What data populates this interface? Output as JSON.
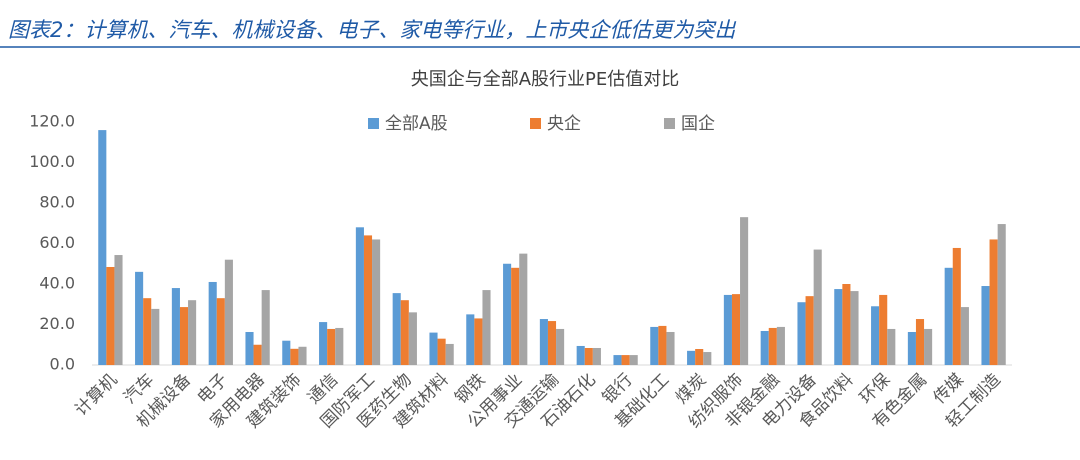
{
  "chart_data": {
    "type": "bar",
    "caption": "图表2：计算机、汽车、机械设备、电子、家电等行业，上市央企低估更为突出",
    "title": "央国企与全部A股行业PE估值对比",
    "categories": [
      "计算机",
      "汽车",
      "机械设备",
      "电子",
      "家用电器",
      "建筑装饰",
      "通信",
      "国防军工",
      "医药生物",
      "建筑材料",
      "钢铁",
      "公用事业",
      "交通运输",
      "石油石化",
      "银行",
      "基础化工",
      "煤炭",
      "纺织服饰",
      "非银金融",
      "电力设备",
      "食品饮料",
      "环保",
      "有色金属",
      "传媒",
      "轻工制造"
    ],
    "series": [
      {
        "name": "全部A股",
        "color": "#5b9bd5",
        "values": [
          116,
          46,
          38,
          41,
          16.3,
          12,
          21.2,
          68,
          35.5,
          16,
          25,
          50,
          22.7,
          9.4,
          4.9,
          18.8,
          7,
          34.6,
          16.8,
          31,
          37.5,
          29,
          16.3,
          48,
          39
        ]
      },
      {
        "name": "央企",
        "color": "#ed7d31",
        "values": [
          48.4,
          33,
          28.6,
          33,
          10,
          8,
          17.8,
          64,
          32,
          13,
          23,
          48,
          21.7,
          8.4,
          4.9,
          19.3,
          7.9,
          35,
          18.3,
          34,
          40,
          34.6,
          22.7,
          57.8,
          62
        ]
      },
      {
        "name": "国企",
        "color": "#a5a5a5",
        "values": [
          54.3,
          27.7,
          32,
          52,
          37,
          9,
          18.3,
          62,
          26,
          10.4,
          37,
          55,
          17.8,
          8.4,
          4.9,
          16.3,
          6.4,
          73,
          18.8,
          57,
          36.5,
          17.8,
          17.8,
          28.6,
          69.6
        ]
      }
    ],
    "ylim": [
      0,
      120
    ],
    "yticks": [
      {
        "value": 0,
        "label": "0.0"
      },
      {
        "value": 20,
        "label": "20.0"
      },
      {
        "value": 40,
        "label": "40.0"
      },
      {
        "value": 60,
        "label": "60.0"
      },
      {
        "value": 80,
        "label": "80.0"
      },
      {
        "value": 100,
        "label": "100.0"
      },
      {
        "value": 120,
        "label": "120.0"
      }
    ],
    "legend": "top"
  }
}
